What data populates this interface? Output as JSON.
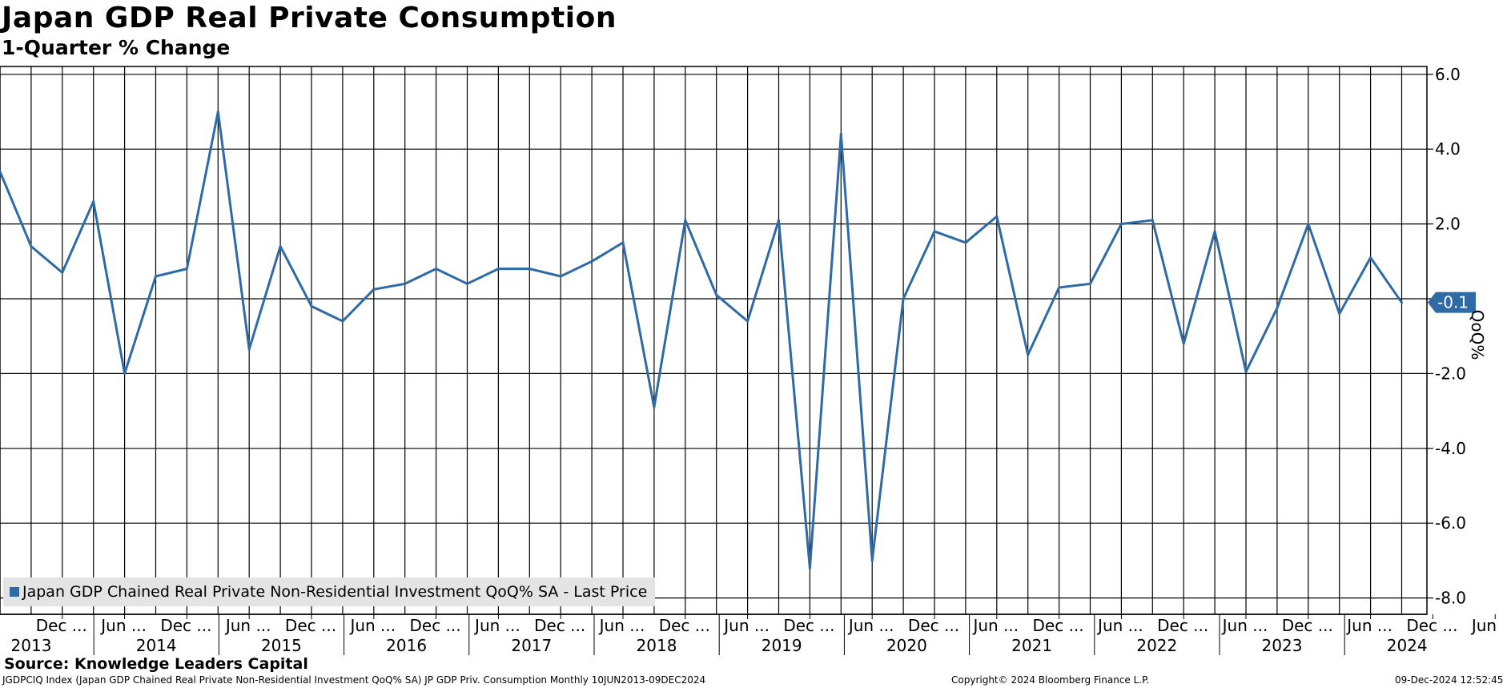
{
  "header": {
    "title": "Japan GDP Real Private Consumption",
    "subtitle": "1-Quarter % Change"
  },
  "legend": {
    "label": "Japan GDP Chained Real Private Non-Residential Investment QoQ% SA - Last Price",
    "color": "#2e6aa6"
  },
  "source": "Source: Knowledge Leaders Capital",
  "footer": {
    "left": "JGDPCIQ Index (Japan GDP Chained Real Private Non-Residential Investment QoQ% SA) JP GDP Priv. Consumption  Monthly 10JUN2013-09DEC2024",
    "middle": "Copyright© 2024 Bloomberg Finance L.P.",
    "right": "09-Dec-2024 12:52:45"
  },
  "chart_data": {
    "type": "line",
    "title": "Japan GDP Real Private Consumption",
    "subtitle": "1-Quarter % Change",
    "ylabel": "QoQ%",
    "ylim": [
      -8.4,
      6.2
    ],
    "yticks": [
      6.0,
      4.0,
      2.0,
      -2.0,
      -4.0,
      -6.0,
      -8.0
    ],
    "ytick_labels": [
      "6.0",
      "4.0",
      "2.0",
      "-2.0",
      "-4.0",
      "-6.0",
      "-8.0"
    ],
    "last_value_label": "-0.1",
    "grid": true,
    "month_labels": [
      "Dec ...",
      "Jun ...",
      "Dec ...",
      "Jun ...",
      "Dec ...",
      "Jun ...",
      "Dec ...",
      "Jun ...",
      "Dec ...",
      "Jun ...",
      "Dec ...",
      "Jun ...",
      "Dec ...",
      "Jun ...",
      "Dec ...",
      "Jun ...",
      "Dec ...",
      "Jun ...",
      "Dec ...",
      "Jun ...",
      "Dec ...",
      "Jun ...",
      "Dec ...",
      "Jun ..."
    ],
    "year_labels": [
      "2013",
      "2014",
      "2015",
      "2016",
      "2017",
      "2018",
      "2019",
      "2020",
      "2021",
      "2022",
      "2023",
      "2024"
    ],
    "series": [
      {
        "name": "Japan GDP Chained Real Private Non-Residential Investment QoQ% SA - Last Price",
        "color": "#2e6aa6",
        "values": [
          3.4,
          1.4,
          0.7,
          2.6,
          -2.0,
          0.6,
          0.8,
          5.0,
          -1.35,
          1.4,
          -0.2,
          -0.6,
          0.25,
          0.4,
          0.8,
          0.4,
          0.8,
          0.8,
          0.6,
          1.0,
          1.5,
          -2.9,
          2.1,
          0.1,
          -0.6,
          2.1,
          -7.2,
          4.4,
          -7.0,
          0.0,
          1.8,
          1.5,
          2.2,
          -1.5,
          0.3,
          0.4,
          2.0,
          2.1,
          -1.2,
          1.8,
          -1.95,
          -0.25,
          2.0,
          -0.4,
          1.1,
          -0.1
        ]
      }
    ]
  }
}
